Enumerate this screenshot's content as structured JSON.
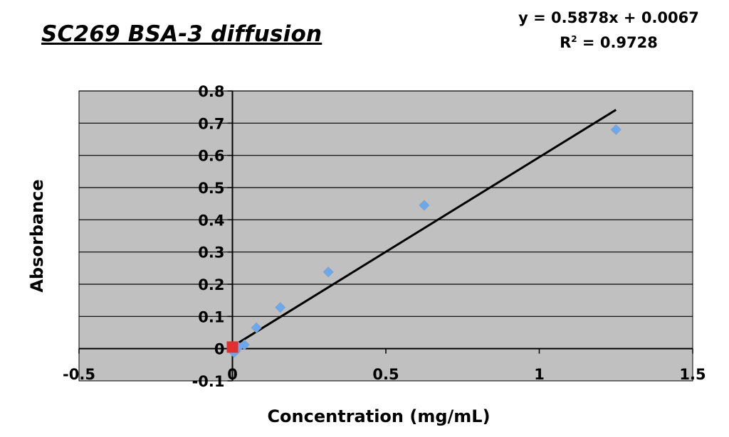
{
  "chart_data": {
    "type": "scatter",
    "title": "SC269 BSA-3 diffusion",
    "xlabel": "Concentration (mg/mL)",
    "ylabel": "Absorbance",
    "xlim": [
      -0.5,
      1.5
    ],
    "ylim": [
      -0.1,
      0.8
    ],
    "x_ticks": [
      "-0.5",
      "0",
      "0.5",
      "1",
      "1.5"
    ],
    "y_ticks": [
      "-0.1",
      "0",
      "0.1",
      "0.2",
      "0.3",
      "0.4",
      "0.5",
      "0.6",
      "0.7",
      "0.8"
    ],
    "grid": true,
    "background_color": "#c0c0c0",
    "series": [
      {
        "marker": "diamond",
        "color": "#6aa8f0",
        "points": [
          {
            "x": 1.25,
            "y": 0.68
          },
          {
            "x": 0.625,
            "y": 0.445
          },
          {
            "x": 0.3125,
            "y": 0.238
          },
          {
            "x": 0.156,
            "y": 0.128
          },
          {
            "x": 0.078,
            "y": 0.065
          },
          {
            "x": 0.039,
            "y": 0.012
          },
          {
            "x": 0.0195,
            "y": 0.005
          },
          {
            "x": 0.01,
            "y": -0.008
          },
          {
            "x": 0.005,
            "y": -0.012
          }
        ]
      },
      {
        "marker": "square",
        "color": "#e03030",
        "points": [
          {
            "x": 0.0,
            "y": 0.005
          }
        ]
      }
    ],
    "trendline": {
      "type": "linear",
      "slope": 0.5878,
      "intercept": 0.0067,
      "x_range": [
        0,
        1.25
      ],
      "color": "#000000",
      "equation": "y = 0.5878x + 0.0067",
      "r2_label": "R",
      "r2_sup": "2",
      "r2_value": " = 0.9728"
    }
  }
}
